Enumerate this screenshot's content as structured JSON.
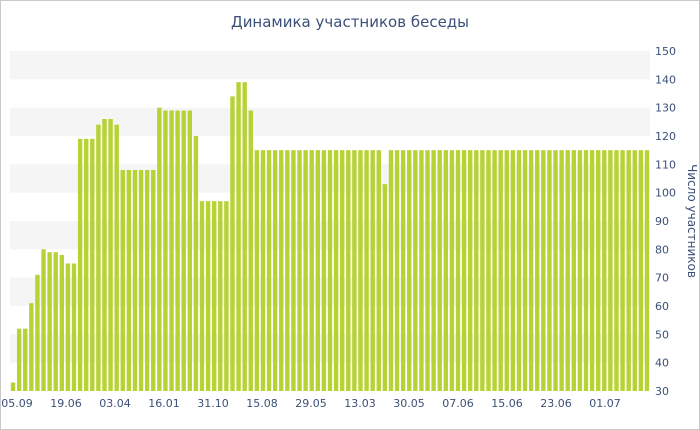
{
  "chart_data": {
    "type": "bar",
    "title": "Динамика участников беседы",
    "xlabel": "",
    "ylabel": "Число участников",
    "ylim": [
      30,
      150
    ],
    "yticks": [
      30,
      40,
      50,
      60,
      70,
      80,
      90,
      100,
      110,
      120,
      130,
      140,
      150
    ],
    "x_tick_labels": [
      "05.09",
      "19.06",
      "03.04",
      "16.01",
      "31.10",
      "15.08",
      "29.05",
      "13.03",
      "30.05",
      "07.06",
      "15.06",
      "23.06",
      "01.07"
    ],
    "grid": "horizontal bands",
    "bar_color": "#b5d334",
    "band_color": "#f5f5f5",
    "axis_text_color": "#3b5078",
    "values": [
      33,
      52,
      52,
      61,
      71,
      80,
      79,
      79,
      78,
      75,
      75,
      119,
      119,
      119,
      124,
      126,
      126,
      124,
      108,
      108,
      108,
      108,
      108,
      108,
      130,
      129,
      129,
      129,
      129,
      129,
      120,
      97,
      97,
      97,
      97,
      97,
      134,
      139,
      139,
      129,
      115,
      115,
      115,
      115,
      115,
      115,
      115,
      115,
      115,
      115,
      115,
      115,
      115,
      115,
      115,
      115,
      115,
      115,
      115,
      115,
      115,
      103,
      115,
      115,
      115,
      115,
      115,
      115,
      115,
      115,
      115,
      115,
      115,
      115,
      115,
      115,
      115,
      115,
      115,
      115,
      115,
      115,
      115,
      115,
      115,
      115,
      115,
      115,
      115,
      115,
      115,
      115,
      115,
      115,
      115,
      115,
      115,
      115,
      115,
      115,
      115,
      115,
      115,
      115,
      115
    ]
  }
}
